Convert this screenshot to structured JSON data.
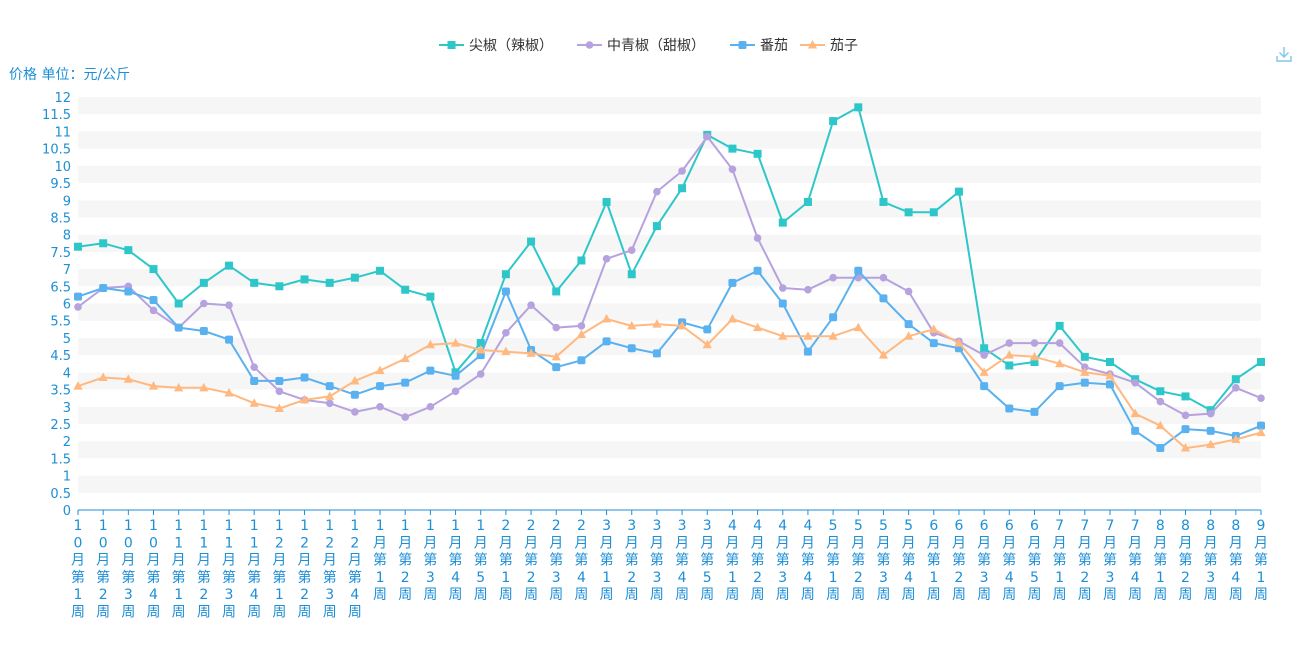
{
  "chart_data": {
    "type": "line",
    "ylabel": "价格 单位：元/公斤",
    "ylim": [
      0,
      12
    ],
    "ytick_step": 0.5,
    "grid": true,
    "legend_position": "top-center",
    "categories": [
      "10月第1周",
      "10月第2周",
      "10月第3周",
      "10月第4周",
      "11月第1周",
      "11月第2周",
      "11月第3周",
      "11月第4周",
      "12月第1周",
      "12月第2周",
      "12月第3周",
      "12月第4周",
      "1月第1周",
      "1月第2周",
      "1月第3周",
      "1月第4周",
      "1月第5周",
      "2月第1周",
      "2月第2周",
      "2月第3周",
      "2月第4周",
      "3月第1周",
      "3月第2周",
      "3月第3周",
      "3月第4周",
      "3月第5周",
      "4月第1周",
      "4月第2周",
      "4月第3周",
      "4月第4周",
      "5月第1周",
      "5月第2周",
      "5月第3周",
      "5月第4周",
      "6月第1周",
      "6月第2周",
      "6月第3周",
      "6月第4周",
      "6月第5周",
      "7月第1周",
      "7月第2周",
      "7月第3周",
      "7月第4周",
      "8月第1周",
      "8月第2周",
      "8月第3周",
      "8月第4周",
      "9月第1周"
    ],
    "series": [
      {
        "name": "尖椒（辣椒）",
        "color": "#2ec7c9",
        "symbol": "square",
        "values": [
          7.65,
          7.75,
          7.55,
          7.0,
          6.0,
          6.6,
          7.1,
          6.6,
          6.5,
          6.7,
          6.6,
          6.75,
          6.95,
          6.4,
          6.2,
          4.0,
          4.85,
          6.85,
          7.8,
          6.35,
          7.25,
          8.95,
          6.85,
          8.25,
          9.35,
          10.9,
          10.5,
          10.35,
          8.35,
          8.95,
          11.3,
          11.7,
          8.95,
          8.65,
          8.65,
          9.25,
          4.7,
          4.2,
          4.3,
          5.35,
          4.45,
          4.3,
          3.8,
          3.45,
          3.3,
          2.9,
          3.8,
          4.3
        ]
      },
      {
        "name": "中青椒（甜椒）",
        "color": "#b6a2de",
        "symbol": "circle",
        "values": [
          5.9,
          6.45,
          6.5,
          5.8,
          5.3,
          6.0,
          5.95,
          4.15,
          3.45,
          3.2,
          3.1,
          2.85,
          3.0,
          2.7,
          3.0,
          3.45,
          3.95,
          5.15,
          5.95,
          5.3,
          5.35,
          7.3,
          7.55,
          9.25,
          9.85,
          10.85,
          9.9,
          7.9,
          6.45,
          6.4,
          6.75,
          6.75,
          6.75,
          6.35,
          5.15,
          4.9,
          4.5,
          4.85,
          4.85,
          4.85,
          4.15,
          3.95,
          3.7,
          3.15,
          2.75,
          2.8,
          3.55,
          3.25
        ]
      },
      {
        "name": "番茄",
        "color": "#5ab1ef",
        "symbol": "roundsquare",
        "values": [
          6.2,
          6.45,
          6.35,
          6.1,
          5.3,
          5.2,
          4.95,
          3.75,
          3.75,
          3.85,
          3.6,
          3.35,
          3.6,
          3.7,
          4.05,
          3.9,
          4.5,
          6.35,
          4.65,
          4.15,
          4.35,
          4.9,
          4.7,
          4.55,
          5.45,
          5.25,
          6.6,
          6.95,
          6.0,
          4.6,
          5.6,
          6.95,
          6.15,
          5.4,
          4.85,
          4.7,
          3.6,
          2.95,
          2.85,
          3.6,
          3.7,
          3.65,
          2.3,
          1.8,
          2.35,
          2.3,
          2.15,
          2.45
        ]
      },
      {
        "name": "茄子",
        "color": "#ffb980",
        "symbol": "triangle",
        "values": [
          3.6,
          3.85,
          3.8,
          3.6,
          3.55,
          3.55,
          3.4,
          3.1,
          2.95,
          3.2,
          3.3,
          3.75,
          4.05,
          4.4,
          4.8,
          4.85,
          4.65,
          4.6,
          4.55,
          4.45,
          5.1,
          5.55,
          5.35,
          5.4,
          5.35,
          4.8,
          5.55,
          5.3,
          5.05,
          5.05,
          5.05,
          5.3,
          4.5,
          5.05,
          5.25,
          4.85,
          4.0,
          4.5,
          4.45,
          4.25,
          4.0,
          3.9,
          2.8,
          2.45,
          1.8,
          1.9,
          2.05,
          2.25
        ]
      }
    ]
  },
  "toolbox": {
    "download_icon": "download-icon"
  }
}
